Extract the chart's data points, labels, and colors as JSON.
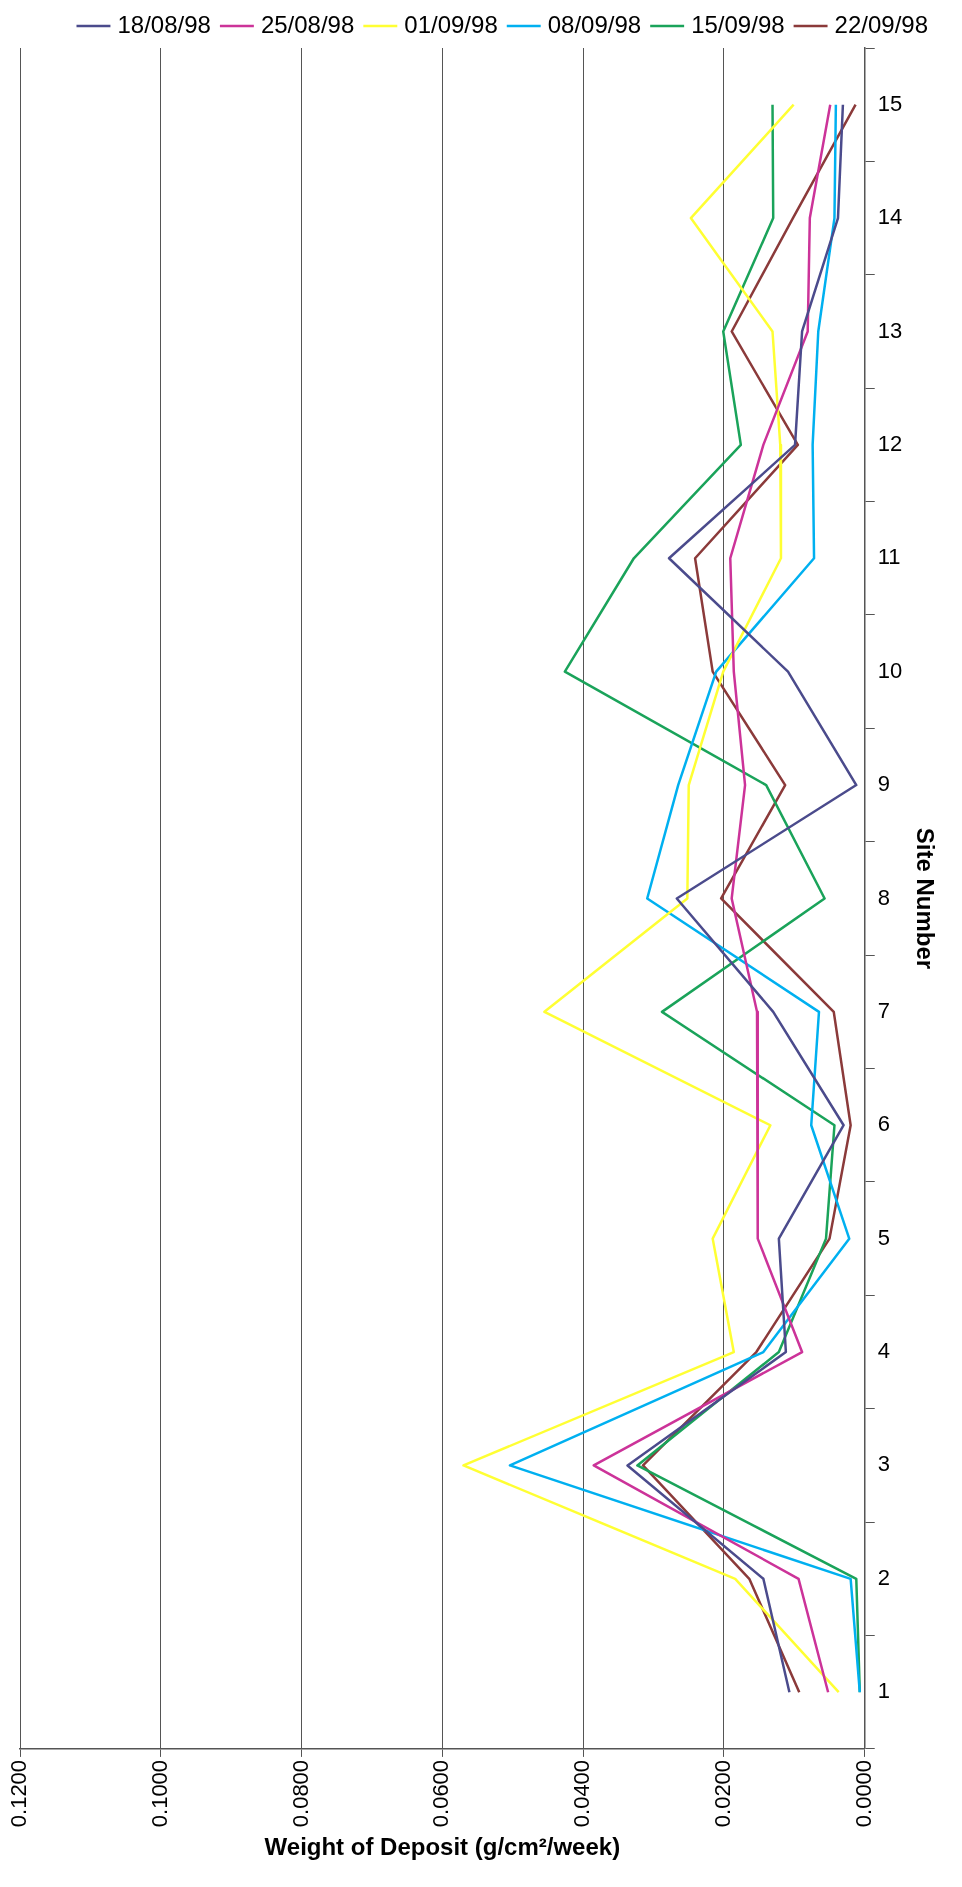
{
  "chart_data": {
    "type": "line",
    "orientation": "horizontal",
    "xlabel": "Weight of Deposit (g/cm²/week)",
    "ylabel": "Site Number",
    "categories": [
      "15",
      "14",
      "13",
      "12",
      "11",
      "10",
      "9",
      "8",
      "7",
      "6",
      "5",
      "4",
      "3",
      "2",
      "1"
    ],
    "series": [
      {
        "name": "18/08/98",
        "color": "#4b4b8c",
        "values": [
          0.0031,
          0.0038,
          0.0089,
          0.0099,
          0.0278,
          0.0109,
          0.0012,
          0.0267,
          0.013,
          0.003,
          0.0122,
          0.0112,
          0.0337,
          0.0144,
          0.0107
        ]
      },
      {
        "name": "25/08/98",
        "color": "#cc3399",
        "values": [
          0.0049,
          0.0078,
          0.0081,
          0.0144,
          0.0191,
          0.0186,
          0.017,
          0.0189,
          0.0153,
          0.0152,
          0.0152,
          0.0089,
          0.0385,
          0.0094,
          0.0052
        ]
      },
      {
        "name": "01/09/98",
        "color": "#ffff33",
        "values": [
          0.0101,
          0.0247,
          0.0131,
          0.012,
          0.0119,
          0.0201,
          0.025,
          0.0252,
          0.0455,
          0.0134,
          0.0216,
          0.0186,
          0.057,
          0.0184,
          0.0037
        ]
      },
      {
        "name": "08/09/98",
        "color": "#00b0f0",
        "values": [
          0.0041,
          0.0043,
          0.0066,
          0.0074,
          0.0072,
          0.0211,
          0.0265,
          0.0309,
          0.0065,
          0.0076,
          0.0022,
          0.0144,
          0.0504,
          0.002,
          0.0007
        ]
      },
      {
        "name": "15/09/98",
        "color": "#1aa35a",
        "values": [
          0.0131,
          0.013,
          0.0201,
          0.0176,
          0.0328,
          0.0426,
          0.014,
          0.0057,
          0.0288,
          0.0043,
          0.0055,
          0.0122,
          0.0323,
          0.0012,
          0.0007
        ]
      },
      {
        "name": "22/09/98",
        "color": "#8b3a3a",
        "values": [
          0.0013,
          0.0102,
          0.0189,
          0.0095,
          0.0241,
          0.0216,
          0.0113,
          0.0204,
          0.0044,
          0.002,
          0.005,
          0.0154,
          0.0315,
          0.0164,
          0.0093
        ]
      }
    ],
    "xlim": [
      0.12,
      0
    ],
    "xticks": [
      {
        "value": 0.12,
        "label": "0.1200"
      },
      {
        "value": 0.1,
        "label": "0.1000"
      },
      {
        "value": 0.08,
        "label": "0.0800"
      },
      {
        "value": 0.06,
        "label": "0.0600"
      },
      {
        "value": 0.04,
        "label": "0.0400"
      },
      {
        "value": 0.02,
        "label": "0.0200"
      },
      {
        "value": 0,
        "label": "0.0000"
      }
    ],
    "grid": "x",
    "legend": "top right",
    "marker": "none",
    "line_style": "solid"
  }
}
